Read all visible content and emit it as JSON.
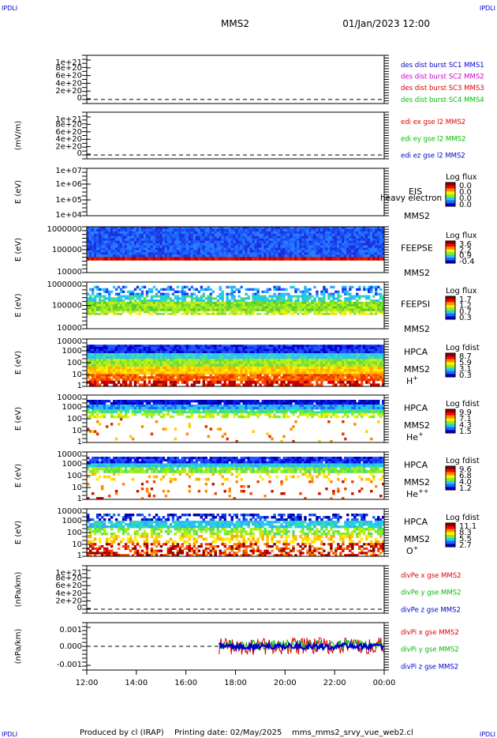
{
  "header": {
    "corner_tl": "IPDLI",
    "corner_tr": "IPDLI",
    "spacecraft": "MMS2",
    "datetime": "01/Jan/2023 12:00"
  },
  "footer": {
    "corner_bl": "IPDLI",
    "corner_br": "IPDLI",
    "produced_by": "Produced by  cl (IRAP)",
    "printing_date": "Printing date: 02/May/2025",
    "script": "mms_mms2_srvy_vue_web2.cl"
  },
  "colors": {
    "mms1": "#0000cc",
    "mms2": "#cc00cc",
    "mms3": "#dd0000",
    "mms4": "#00bb00",
    "red": "#dd0000",
    "green": "#00bb00",
    "blue": "#0000cc"
  },
  "chart_data": [
    {
      "id": "des-dist",
      "type": "line",
      "ylabel": "",
      "ytick_labels": [
        "1e+21",
        "8e+20",
        "6e+20",
        "4e+20",
        "2e+20",
        "0"
      ],
      "ylim": [
        -1e+20,
        1.1e+21
      ],
      "dashed_zero": true,
      "legend": [
        {
          "text": "des dist burst SC1 MMS1",
          "color": "#0000cc"
        },
        {
          "text": "des dist burst SC2 MMS2",
          "color": "#cc00cc"
        },
        {
          "text": "des dist burst SC3 MMS3",
          "color": "#dd0000"
        },
        {
          "text": "des dist burst SC4 MMS4",
          "color": "#00bb00"
        }
      ]
    },
    {
      "id": "edi-e",
      "type": "line",
      "ylabel": "(mV/m)",
      "ytick_labels": [
        "1e+21",
        "8e+20",
        "6e+20",
        "4e+20",
        "2e+20",
        "0"
      ],
      "ylim": [
        -1e+20,
        1.1e+21
      ],
      "dashed_zero": true,
      "legend": [
        {
          "text": "edi ex gse l2 MMS2",
          "color": "#dd0000"
        },
        {
          "text": "edi ey gse l2 MMS2",
          "color": "#00bb00"
        },
        {
          "text": "edi ez gse l2 MMS2",
          "color": "#0000cc"
        }
      ]
    },
    {
      "id": "eis",
      "type": "heatmap",
      "ylabel": "E (eV)",
      "scale": "log",
      "ytick_labels": [
        "1e+07",
        "1e+06",
        "1e+05",
        "1e+04"
      ],
      "instrument": "EIS",
      "overlay": "heavy electron to",
      "sc": "MMS2",
      "cbar_title": "Log flux",
      "cbar_ticks": [
        "0.0",
        "0.0",
        "0.0",
        "0.0"
      ],
      "bands": []
    },
    {
      "id": "feepse",
      "type": "heatmap",
      "ylabel": "E (eV)",
      "scale": "log",
      "ytick_labels": [
        "1000000",
        "100000",
        "10000"
      ],
      "instrument": "FEEPSE",
      "sc": "MMS2",
      "cbar_title": "Log flux",
      "cbar_ticks": [
        "3.6",
        "2.2",
        "0.9",
        "-0.4"
      ],
      "bands": [
        {
          "y0": 0.0,
          "y1": 0.66,
          "palette": [
            "#1c2fe0",
            "#1d49ee",
            "#1a66ff",
            "#2a7cff"
          ],
          "density": 1.0
        },
        {
          "y0": 0.66,
          "y1": 0.73,
          "palette": [
            "#cc1100",
            "#dd2000",
            "#bb0000"
          ],
          "density": 1.0
        }
      ]
    },
    {
      "id": "feepsi",
      "type": "heatmap",
      "ylabel": "E (eV)",
      "scale": "log",
      "ytick_labels": [
        "1000000",
        "100000",
        "10000"
      ],
      "instrument": "FEEPSI",
      "sc": "MMS2",
      "cbar_title": "Log flux",
      "cbar_ticks": [
        "1.7",
        "1.2",
        "0.7",
        "0.3"
      ],
      "bands": [
        {
          "y0": 0.08,
          "y1": 0.28,
          "palette": [
            "#1133ee",
            "#2266ff",
            "#33aaff",
            "#22ccee"
          ],
          "density": 0.4
        },
        {
          "y0": 0.28,
          "y1": 0.42,
          "palette": [
            "#22ccee",
            "#33ddaa",
            "#55dd66",
            "#22bbff"
          ],
          "density": 0.7
        },
        {
          "y0": 0.42,
          "y1": 0.62,
          "palette": [
            "#77dd33",
            "#99ee22",
            "#ccee11",
            "#55cc33"
          ],
          "density": 1.0
        },
        {
          "y0": 0.62,
          "y1": 0.7,
          "palette": [
            "#ccee22",
            "#ffee00",
            "#88dd33"
          ],
          "density": 0.7
        }
      ]
    },
    {
      "id": "hpca-h",
      "type": "heatmap",
      "ylabel": "E (eV)",
      "scale": "log",
      "ytick_labels": [
        "10000",
        "1000",
        "100",
        "10",
        "1"
      ],
      "instrument": "HPCA",
      "sc": "MMS2",
      "species": "H",
      "species_sup": "+",
      "cbar_title": "Log fdist",
      "cbar_ticks": [
        "8.7",
        "5.9",
        "3.1",
        "0.3"
      ],
      "bands": [
        {
          "y0": 0.12,
          "y1": 0.3,
          "palette": [
            "#0000cc",
            "#1133ee",
            "#2255ff"
          ],
          "density": 1.0
        },
        {
          "y0": 0.3,
          "y1": 0.42,
          "palette": [
            "#22ccee",
            "#44ddaa",
            "#33bbff"
          ],
          "density": 1.0
        },
        {
          "y0": 0.42,
          "y1": 0.58,
          "palette": [
            "#66dd44",
            "#99ee22",
            "#ccee11"
          ],
          "density": 1.0
        },
        {
          "y0": 0.58,
          "y1": 0.74,
          "palette": [
            "#ffee00",
            "#ffcc00",
            "#ffaa00"
          ],
          "density": 1.0
        },
        {
          "y0": 0.74,
          "y1": 0.88,
          "palette": [
            "#ff8800",
            "#ff5500",
            "#ee3300"
          ],
          "density": 0.9
        },
        {
          "y0": 0.88,
          "y1": 1.0,
          "palette": [
            "#dd0000",
            "#aa0000",
            "#ff4400"
          ],
          "density": 0.7
        }
      ]
    },
    {
      "id": "hpca-he",
      "type": "heatmap",
      "ylabel": "E (eV)",
      "scale": "log",
      "ytick_labels": [
        "10000",
        "1000",
        "100",
        "10",
        "1"
      ],
      "instrument": "HPCA",
      "sc": "MMS2",
      "species": "He",
      "species_sup": "+",
      "cbar_title": "Log fdist",
      "cbar_ticks": [
        "9.9",
        "7.1",
        "4.3",
        "1.5"
      ],
      "bands": [
        {
          "y0": 0.1,
          "y1": 0.2,
          "palette": [
            "#0000aa",
            "#0011cc",
            "#1122ee"
          ],
          "density": 0.95
        },
        {
          "y0": 0.2,
          "y1": 0.3,
          "palette": [
            "#2266ff",
            "#33aaff",
            "#22ccee"
          ],
          "density": 1.0
        },
        {
          "y0": 0.3,
          "y1": 0.38,
          "palette": [
            "#22ddbb",
            "#55dd66",
            "#66ee44"
          ],
          "density": 0.9
        },
        {
          "y0": 0.38,
          "y1": 0.48,
          "palette": [
            "#88ee22",
            "#bbee11",
            "#ffee00"
          ],
          "density": 0.55
        },
        {
          "y0": 0.48,
          "y1": 1.0,
          "palette": [
            "#ffcc00",
            "#ff8800",
            "#dd3300"
          ],
          "density": 0.03
        }
      ]
    },
    {
      "id": "hpca-hepp",
      "type": "heatmap",
      "ylabel": "E (eV)",
      "scale": "log",
      "ytick_labels": [
        "10000",
        "1000",
        "100",
        "10",
        "1"
      ],
      "instrument": "HPCA",
      "sc": "MMS2",
      "species": "He",
      "species_sup": "++",
      "cbar_title": "Log fdist",
      "cbar_ticks": [
        "9.6",
        "6.8",
        "4.0",
        "1.2"
      ],
      "bands": [
        {
          "y0": 0.1,
          "y1": 0.24,
          "palette": [
            "#0000cc",
            "#1133ee",
            "#2255ff"
          ],
          "density": 0.95
        },
        {
          "y0": 0.24,
          "y1": 0.32,
          "palette": [
            "#33aaff",
            "#22ccee",
            "#33ddaa"
          ],
          "density": 1.0
        },
        {
          "y0": 0.32,
          "y1": 0.44,
          "palette": [
            "#55dd66",
            "#88ee22",
            "#aaee22"
          ],
          "density": 0.9
        },
        {
          "y0": 0.44,
          "y1": 0.6,
          "palette": [
            "#ffee00",
            "#ffcc00",
            "#ffaa00"
          ],
          "density": 0.2
        },
        {
          "y0": 0.6,
          "y1": 1.0,
          "palette": [
            "#ff8800",
            "#ee4400",
            "#cc1100"
          ],
          "density": 0.08
        }
      ]
    },
    {
      "id": "hpca-o",
      "type": "heatmap",
      "ylabel": "E (eV)",
      "scale": "log",
      "ytick_labels": [
        "10000",
        "1000",
        "100",
        "10",
        "1"
      ],
      "instrument": "HPCA",
      "sc": "MMS2",
      "species": "O",
      "species_sup": "+",
      "cbar_title": "Log fdist",
      "cbar_ticks": [
        "11.1",
        "8.3",
        "5.5",
        "2.7"
      ],
      "bands": [
        {
          "y0": 0.1,
          "y1": 0.25,
          "palette": [
            "#0000aa",
            "#1133ee",
            "#2266ff"
          ],
          "density": 0.45
        },
        {
          "y0": 0.25,
          "y1": 0.4,
          "palette": [
            "#33aaff",
            "#22ccee",
            "#33ddaa"
          ],
          "density": 0.85
        },
        {
          "y0": 0.4,
          "y1": 0.55,
          "palette": [
            "#55dd66",
            "#88ee22",
            "#bbee11"
          ],
          "density": 0.6
        },
        {
          "y0": 0.55,
          "y1": 0.72,
          "palette": [
            "#ffee00",
            "#ffcc00",
            "#ffaa00"
          ],
          "density": 0.45
        },
        {
          "y0": 0.72,
          "y1": 1.0,
          "palette": [
            "#ff8800",
            "#ee4400",
            "#cc0000",
            "#880000"
          ],
          "density": 0.55
        }
      ]
    },
    {
      "id": "divpe",
      "type": "line",
      "ylabel": "(nPa/km)",
      "ytick_labels": [
        "1e+21",
        "8e+20",
        "6e+20",
        "4e+20",
        "2e+20",
        "0"
      ],
      "ylim": [
        -1e+20,
        1.1e+21
      ],
      "dashed_zero": true,
      "legend": [
        {
          "text": "divPe x gse MMS2",
          "color": "#dd0000"
        },
        {
          "text": "divPe y gse MMS2",
          "color": "#00bb00"
        },
        {
          "text": "divPe z gse MMS2",
          "color": "#0000cc"
        }
      ]
    },
    {
      "id": "divpi",
      "type": "line",
      "ylabel": "(nPa/km)",
      "ytick_labels": [
        "0.001",
        "0.000",
        "-0.001"
      ],
      "ylim": [
        -0.0019,
        0.0019
      ],
      "dashed_zero": true,
      "noise_start": "17:20",
      "legend": [
        {
          "text": "divPi x gse MMS2",
          "color": "#dd0000"
        },
        {
          "text": "divPi y gse MMS2",
          "color": "#00bb00"
        },
        {
          "text": "divPi z gse MMS2",
          "color": "#0000cc"
        }
      ]
    }
  ],
  "x_axis": {
    "tick_labels": [
      "12:00",
      "14:00",
      "16:00",
      "18:00",
      "20:00",
      "22:00",
      "00:00"
    ]
  }
}
